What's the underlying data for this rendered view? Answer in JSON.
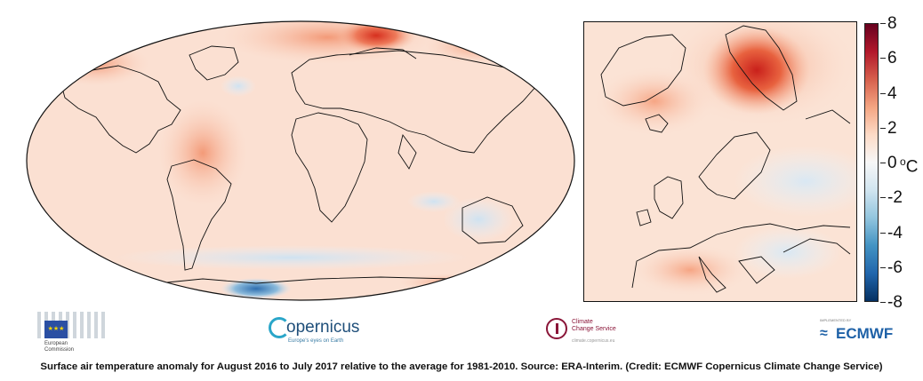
{
  "colorbar": {
    "ticks": [
      "8",
      "6",
      "4",
      "2",
      "0",
      "-2",
      "-4",
      "-6",
      "-8"
    ],
    "unit_symbol": "o",
    "unit_letter": "C",
    "colors": [
      "#67001f",
      "#b2182b",
      "#d6604d",
      "#f4a582",
      "#fddbc7",
      "#f7f7f7",
      "#d1e5f0",
      "#92c5de",
      "#4393c3",
      "#2166ac",
      "#053061"
    ]
  },
  "logos": {
    "eu_line1": "European",
    "eu_line2": "Commission",
    "copernicus_name": "opernicus",
    "copernicus_tagline": "Europe's eyes on Earth",
    "c3s_line1": "Climate",
    "c3s_line2": "Change Service",
    "c3s_url": "climate.copernicus.eu",
    "ecmwf_small": "IMPLEMENTED BY",
    "ecmwf_name": "ECMWF"
  },
  "caption": "Surface air temperature anomaly for August 2016 to July 2017 relative to the average for 1981-2010. Source: ERA-Interim. (Credit: ECMWF Copernicus Climate Change Service)"
}
